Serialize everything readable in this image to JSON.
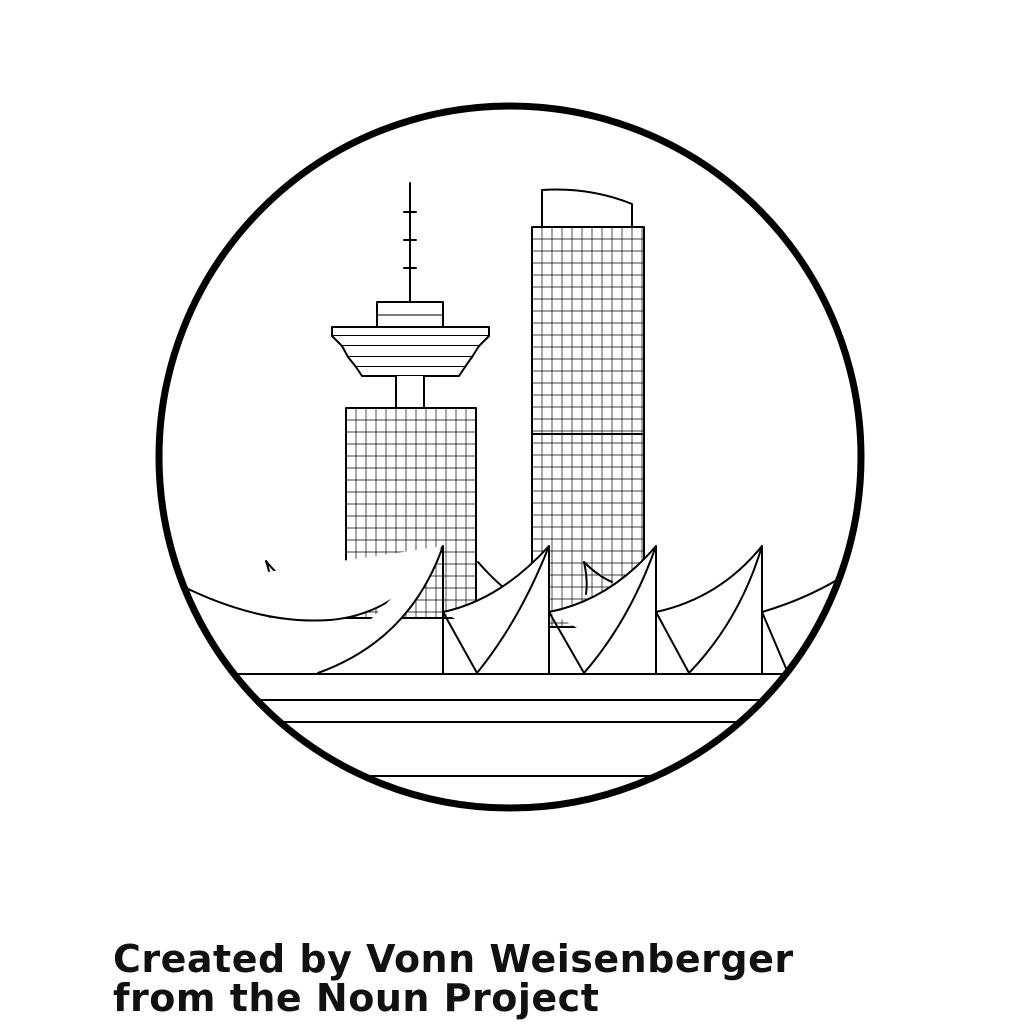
{
  "icon": {
    "name": "vancouver-skyline-icon",
    "stroke_color": "#000000",
    "background_color": "#ffffff"
  },
  "credit": {
    "line1": "Created by Vonn Weisenberger",
    "line2": "from the Noun Project"
  }
}
